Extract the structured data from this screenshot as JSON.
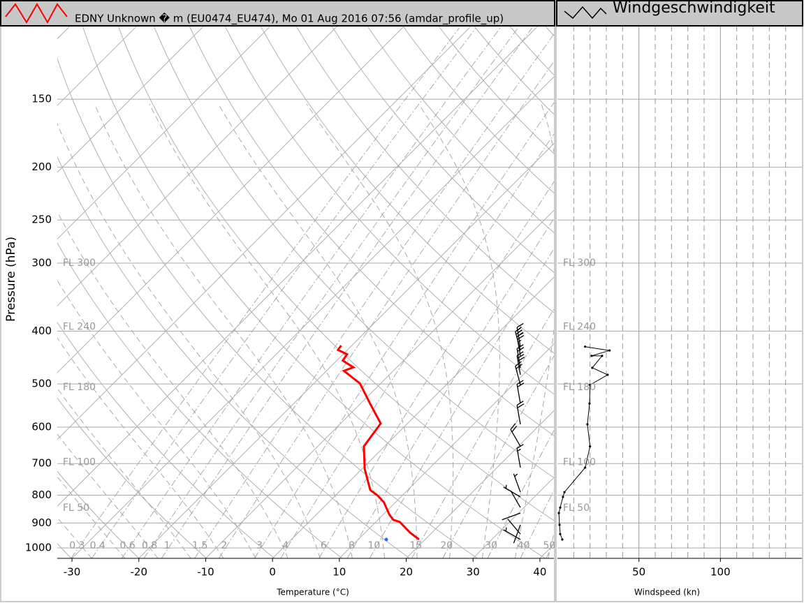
{
  "chart_data": [
    {
      "type": "skewt",
      "series": [
        {
          "name": "EDNY Unknown � m (EU0474_EU474), Mo 01 Aug 2016 07:56 (amdar_profile_up)",
          "color": "#ff0000",
          "pressure": [
            965,
            937,
            896,
            888,
            868,
            825,
            801,
            783,
            716,
            651,
            591,
            545,
            499,
            473,
            466,
            453,
            441,
            433,
            425
          ],
          "values": [
            19.1,
            16.7,
            13.6,
            12.3,
            10.9,
            8.3,
            6.3,
            4.4,
            0.4,
            -3.1,
            -4.0,
            -8.4,
            -13.1,
            -17.4,
            -16.5,
            -19.1,
            -19.4,
            -21.4,
            -21.6
          ]
        }
      ],
      "dewpoint": {
        "color": "#2a6cf0",
        "pressure": [
          965
        ],
        "values": [
          14.2
        ]
      },
      "wind": {
        "color": "#000000",
        "pressure": [
          965,
          943,
          907,
          863,
          843,
          806,
          790,
          712,
          651,
          593,
          543,
          502,
          481,
          467,
          444,
          434,
          427
        ],
        "speed": [
          3,
          2,
          1,
          1,
          2,
          3,
          4,
          17,
          20,
          18,
          20,
          20,
          31,
          21,
          27,
          32,
          17
        ],
        "direction": [
          300,
          320,
          200,
          250,
          330,
          300,
          340,
          350,
          330,
          350,
          350,
          345,
          350,
          350,
          350,
          345,
          350
        ]
      },
      "xlabel": "Temperature (°C)",
      "ylabel": "Pressure (hPa)",
      "xlim": [
        -32.2,
        42.1
      ],
      "ylim": [
        1045,
        110
      ],
      "xticks": [
        -30,
        -20,
        -10,
        0,
        10,
        20,
        30,
        40
      ],
      "yticks": [
        150,
        200,
        250,
        300,
        400,
        500,
        600,
        700,
        800,
        900,
        1000
      ],
      "log_y": true,
      "grid": true,
      "mixing_ratios": [
        0.3,
        0.4,
        0.6,
        0.8,
        1,
        1.5,
        2,
        3,
        4,
        6,
        8,
        10,
        15,
        20,
        30,
        40,
        50
      ],
      "flight_levels": [
        {
          "label": "FL 300",
          "value": 300
        },
        {
          "label": "FL 240",
          "value": 393
        },
        {
          "label": "FL 180",
          "value": 507
        },
        {
          "label": "FL 100",
          "value": 697
        },
        {
          "label": "FL 50",
          "value": 845
        }
      ]
    },
    {
      "type": "line",
      "series": [
        {
          "name": "Windgeschwindigkeit",
          "color": "#000000",
          "y": [
            965,
            943,
            907,
            863,
            843,
            806,
            790,
            712,
            651,
            593,
            543,
            502,
            481,
            467,
            444,
            444,
            434,
            427
          ],
          "values": [
            3,
            1.7,
            1.3,
            0.9,
            1.7,
            3.4,
            4.3,
            17,
            20,
            18.4,
            19.7,
            20,
            30.8,
            21.4,
            27.4,
            21,
            32,
            17
          ]
        }
      ],
      "xlabel": "Windspeed (kn)",
      "xlim": [
        0,
        150
      ],
      "xticks": [
        50,
        100
      ],
      "minor_xticks": [
        10,
        20,
        30,
        40,
        60,
        70,
        80,
        90,
        110,
        120,
        130,
        140
      ],
      "ylim": [
        1045,
        110
      ],
      "yticks": [
        150,
        200,
        250,
        300,
        400,
        500,
        600,
        700,
        800,
        900,
        1000
      ],
      "log_y": true,
      "grid": true
    }
  ]
}
